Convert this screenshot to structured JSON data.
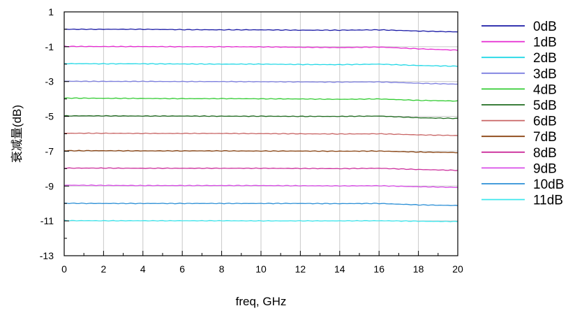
{
  "chart_data": {
    "type": "line",
    "xlabel": "freq, GHz",
    "ylabel": "衰减量(dB)",
    "xlim": [
      0,
      20
    ],
    "ylim": [
      -13,
      1
    ],
    "xticks": [
      "0",
      "2",
      "4",
      "6",
      "8",
      "10",
      "12",
      "14",
      "16",
      "18",
      "20"
    ],
    "yticks": [
      "1",
      "-1",
      "-3",
      "-5",
      "-7",
      "-9",
      "-11",
      "-13"
    ],
    "grid": true,
    "legend_position": "right",
    "x": [
      0,
      2,
      4,
      6,
      8,
      10,
      12,
      14,
      16,
      18,
      20
    ],
    "series": [
      {
        "name": "0dB",
        "color": "#1a1aa6",
        "values": [
          0.0,
          0.0,
          0.0,
          -0.02,
          -0.03,
          -0.03,
          -0.05,
          -0.05,
          -0.03,
          -0.1,
          -0.15
        ]
      },
      {
        "name": "1dB",
        "color": "#e62ad1",
        "values": [
          -0.98,
          -0.99,
          -0.99,
          -1.0,
          -1.0,
          -1.01,
          -1.03,
          -1.05,
          -1.02,
          -1.12,
          -1.2
        ]
      },
      {
        "name": "2dB",
        "color": "#22d8e6",
        "values": [
          -1.97,
          -1.98,
          -1.98,
          -1.99,
          -2.0,
          -2.0,
          -2.02,
          -2.03,
          -2.0,
          -2.08,
          -2.12
        ]
      },
      {
        "name": "3dB",
        "color": "#7d7fe0",
        "values": [
          -2.98,
          -2.99,
          -2.99,
          -3.0,
          -3.0,
          -3.01,
          -3.02,
          -3.03,
          -3.02,
          -3.1,
          -3.15
        ]
      },
      {
        "name": "4dB",
        "color": "#33cc33",
        "values": [
          -3.95,
          -3.96,
          -3.97,
          -3.98,
          -3.98,
          -3.99,
          -4.0,
          -4.02,
          -4.0,
          -4.08,
          -4.12
        ]
      },
      {
        "name": "5dB",
        "color": "#1f6b1f",
        "values": [
          -4.97,
          -4.97,
          -4.98,
          -4.98,
          -4.99,
          -4.99,
          -5.0,
          -5.0,
          -4.98,
          -5.08,
          -5.12
        ]
      },
      {
        "name": "6dB",
        "color": "#c86464",
        "values": [
          -5.97,
          -5.97,
          -5.98,
          -5.98,
          -5.98,
          -5.99,
          -6.0,
          -6.01,
          -6.0,
          -6.06,
          -6.1
        ]
      },
      {
        "name": "7dB",
        "color": "#8b4513",
        "values": [
          -6.97,
          -6.97,
          -6.98,
          -6.98,
          -6.98,
          -6.99,
          -6.99,
          -7.0,
          -6.99,
          -7.05,
          -7.08
        ]
      },
      {
        "name": "8dB",
        "color": "#cc2f9c",
        "values": [
          -7.97,
          -7.97,
          -7.98,
          -7.98,
          -7.98,
          -7.98,
          -7.99,
          -8.0,
          -7.98,
          -8.05,
          -8.1
        ]
      },
      {
        "name": "9dB",
        "color": "#d94fe8",
        "values": [
          -8.95,
          -8.96,
          -8.97,
          -8.97,
          -8.97,
          -8.97,
          -8.98,
          -8.99,
          -8.98,
          -9.04,
          -9.08
        ]
      },
      {
        "name": "10dB",
        "color": "#2b8fd6",
        "values": [
          -9.99,
          -10.0,
          -10.0,
          -10.0,
          -10.0,
          -10.0,
          -10.0,
          -10.01,
          -10.0,
          -10.08,
          -10.12
        ]
      },
      {
        "name": "11dB",
        "color": "#3fe7ee",
        "values": [
          -10.98,
          -10.99,
          -10.99,
          -10.99,
          -10.99,
          -11.0,
          -11.0,
          -11.0,
          -10.99,
          -11.02,
          -11.04
        ]
      }
    ]
  }
}
